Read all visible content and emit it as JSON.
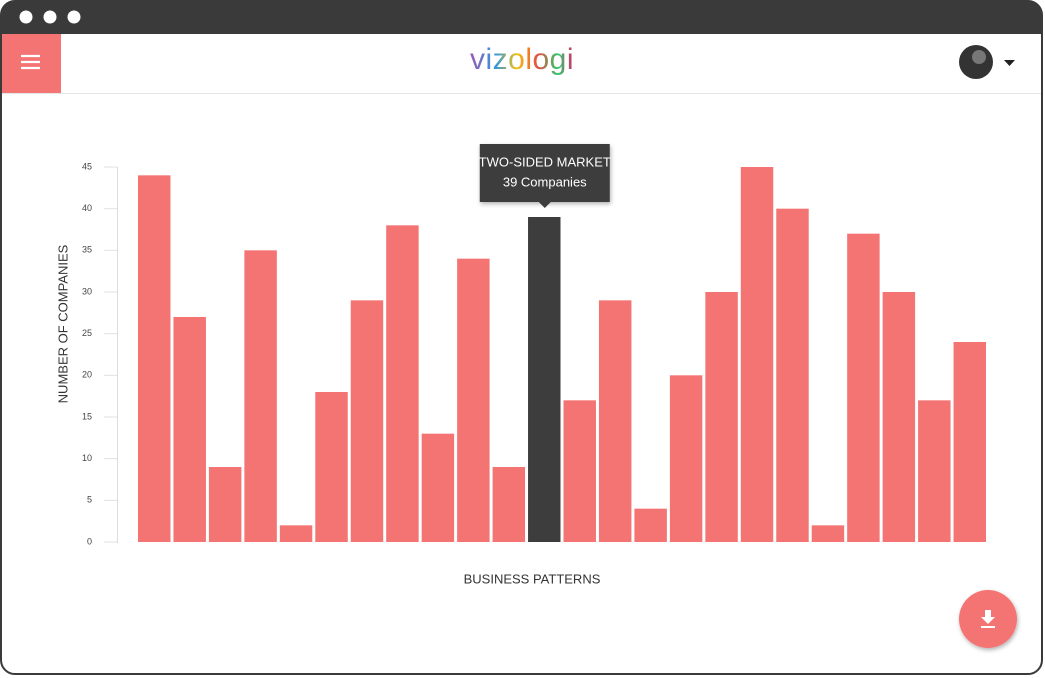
{
  "header": {
    "logo": "vizologi"
  },
  "chart_data": {
    "type": "bar",
    "y_label": "NUMBER OF COMPANIES",
    "x_label": "BUSINESS PATTERNS",
    "categories": [
      null,
      null,
      null,
      null,
      null,
      null,
      null,
      null,
      null,
      null,
      null,
      "TWO-SIDED MARKET",
      null,
      null,
      null,
      null,
      null,
      null,
      null,
      null,
      null,
      null,
      null,
      null
    ],
    "values": [
      44,
      27,
      9,
      35,
      2,
      18,
      29,
      38,
      13,
      34,
      9,
      39,
      17,
      29,
      4,
      20,
      30,
      45,
      40,
      2,
      37,
      30,
      17,
      24
    ],
    "value_labels": [
      null,
      null,
      null,
      null,
      null,
      null,
      null,
      null,
      null,
      null,
      null,
      "39 Companies",
      null,
      null,
      null,
      null,
      null,
      null,
      null,
      null,
      null,
      null,
      null,
      null
    ],
    "color": "#f47373",
    "highlight_color": "#3d3d3d",
    "ylim": [
      0,
      45
    ],
    "yticks": [
      0,
      5,
      10,
      15,
      20,
      25,
      30,
      35,
      40,
      45
    ],
    "grid": false
  }
}
